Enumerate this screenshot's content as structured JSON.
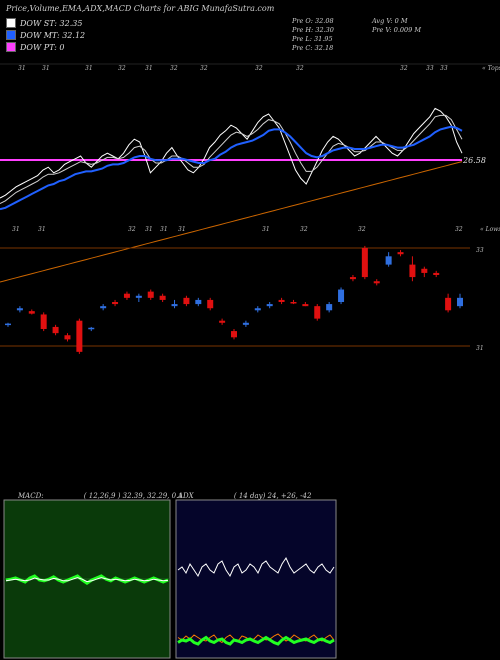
{
  "header": {
    "title": "Price,Volume,EMA,ADX,MACD Charts for ABIG MunafaSutra.com"
  },
  "legend": [
    {
      "label": "DOW ST: 32.35",
      "color": "#ffffff"
    },
    {
      "label": "DOW MT: 32.12",
      "color": "#2060ff"
    },
    {
      "label": "DOW PT: 0",
      "color": "#ff40ff"
    }
  ],
  "stats": {
    "col1": [
      "Pre  O: 32.08",
      "Pre  H: 32.30",
      "Pre  L: 31.95",
      "Pre  C: 32.18"
    ],
    "col2": [
      "Avg V: 0  M",
      "Pre  V: 0.009 M"
    ]
  },
  "macd_label": {
    "name": "MACD:",
    "params": "( 12,26,9 ) 32.39, 32.29, 0.1"
  },
  "adx_label": {
    "name": "ADX",
    "params": "( 14  day) 24, +26, -42"
  },
  "colors": {
    "up": "#2f6fe0",
    "down": "#e01010",
    "ema_short": "#ffffff",
    "ema_mid": "#2060ff",
    "ema_long": "#cc6600",
    "pivot": "#ff40ff"
  },
  "chart_data": [
    {
      "type": "line",
      "title": "Price and EMA",
      "pivot_label": "26.58",
      "top_date_labels": [
        "31",
        "31",
        "31",
        "32",
        "31",
        "32",
        "32",
        "32",
        "32",
        "32",
        "33",
        "33"
      ],
      "top_right_label": "« Tops",
      "bottom_date_labels": [
        "31",
        "31",
        "32",
        "31",
        "31",
        "31",
        "31",
        "32",
        "32",
        "32"
      ],
      "bottom_right_label": "« Lows",
      "series": [
        {
          "name": "price",
          "values": [
            0.3,
            0.32,
            0.35,
            0.38,
            0.4,
            0.42,
            0.44,
            0.46,
            0.5,
            0.52,
            0.48,
            0.5,
            0.54,
            0.56,
            0.58,
            0.6,
            0.55,
            0.52,
            0.56,
            0.6,
            0.62,
            0.6,
            0.58,
            0.62,
            0.68,
            0.72,
            0.7,
            0.6,
            0.48,
            0.52,
            0.56,
            0.62,
            0.66,
            0.6,
            0.55,
            0.5,
            0.48,
            0.52,
            0.58,
            0.66,
            0.7,
            0.75,
            0.78,
            0.82,
            0.8,
            0.76,
            0.72,
            0.78,
            0.84,
            0.88,
            0.9,
            0.85,
            0.8,
            0.7,
            0.6,
            0.5,
            0.44,
            0.4,
            0.48,
            0.56,
            0.64,
            0.7,
            0.74,
            0.72,
            0.68,
            0.64,
            0.6,
            0.62,
            0.66,
            0.7,
            0.74,
            0.7,
            0.66,
            0.62,
            0.6,
            0.64,
            0.7,
            0.76,
            0.8,
            0.84,
            0.88,
            0.94,
            0.92,
            0.88,
            0.82,
            0.7,
            0.62
          ]
        },
        {
          "name": "ema_short",
          "values": [
            0.26,
            0.28,
            0.31,
            0.34,
            0.36,
            0.38,
            0.4,
            0.42,
            0.45,
            0.47,
            0.47,
            0.48,
            0.5,
            0.52,
            0.54,
            0.56,
            0.55,
            0.54,
            0.55,
            0.57,
            0.59,
            0.59,
            0.58,
            0.59,
            0.62,
            0.66,
            0.67,
            0.64,
            0.58,
            0.55,
            0.55,
            0.57,
            0.6,
            0.6,
            0.58,
            0.55,
            0.52,
            0.52,
            0.54,
            0.59,
            0.63,
            0.67,
            0.71,
            0.75,
            0.77,
            0.76,
            0.74,
            0.76,
            0.79,
            0.83,
            0.86,
            0.85,
            0.83,
            0.77,
            0.7,
            0.62,
            0.55,
            0.49,
            0.49,
            0.52,
            0.57,
            0.62,
            0.67,
            0.69,
            0.68,
            0.66,
            0.63,
            0.63,
            0.64,
            0.67,
            0.7,
            0.7,
            0.68,
            0.66,
            0.64,
            0.64,
            0.67,
            0.71,
            0.75,
            0.79,
            0.83,
            0.88,
            0.89,
            0.89,
            0.86,
            0.79,
            0.72
          ]
        },
        {
          "name": "ema_mid",
          "values": [
            0.22,
            0.23,
            0.25,
            0.27,
            0.29,
            0.31,
            0.33,
            0.35,
            0.37,
            0.39,
            0.4,
            0.42,
            0.43,
            0.45,
            0.47,
            0.48,
            0.49,
            0.49,
            0.5,
            0.51,
            0.53,
            0.54,
            0.54,
            0.55,
            0.57,
            0.59,
            0.6,
            0.6,
            0.58,
            0.57,
            0.57,
            0.57,
            0.58,
            0.58,
            0.58,
            0.57,
            0.56,
            0.55,
            0.55,
            0.57,
            0.58,
            0.61,
            0.63,
            0.66,
            0.68,
            0.69,
            0.7,
            0.71,
            0.73,
            0.75,
            0.78,
            0.79,
            0.79,
            0.77,
            0.74,
            0.7,
            0.66,
            0.62,
            0.6,
            0.59,
            0.6,
            0.62,
            0.64,
            0.65,
            0.66,
            0.66,
            0.65,
            0.65,
            0.65,
            0.66,
            0.67,
            0.68,
            0.68,
            0.67,
            0.66,
            0.66,
            0.67,
            0.68,
            0.7,
            0.72,
            0.74,
            0.77,
            0.79,
            0.8,
            0.81,
            0.8,
            0.78
          ]
        },
        {
          "name": "ema_long",
          "values": [
            -0.3,
            -0.29,
            -0.28,
            -0.27,
            -0.26,
            -0.25,
            -0.24,
            -0.23,
            -0.22,
            -0.21,
            -0.2,
            -0.19,
            -0.18,
            -0.17,
            -0.16,
            -0.15,
            -0.14,
            -0.13,
            -0.12,
            -0.11,
            -0.1,
            -0.09,
            -0.08,
            -0.07,
            -0.06,
            -0.05,
            -0.04,
            -0.03,
            -0.02,
            -0.01,
            0.0,
            0.01,
            0.02,
            0.03,
            0.04,
            0.05,
            0.06,
            0.07,
            0.08,
            0.09,
            0.1,
            0.11,
            0.12,
            0.13,
            0.14,
            0.15,
            0.16,
            0.17,
            0.18,
            0.19,
            0.2,
            0.21,
            0.22,
            0.23,
            0.24,
            0.25,
            0.26,
            0.27,
            0.28,
            0.29,
            0.3,
            0.31,
            0.32,
            0.33,
            0.34,
            0.35,
            0.36,
            0.37,
            0.38,
            0.39,
            0.4,
            0.41,
            0.42,
            0.43,
            0.44,
            0.45,
            0.46,
            0.47,
            0.48,
            0.49,
            0.5,
            0.51,
            0.52,
            0.53,
            0.54,
            0.55,
            0.56
          ]
        }
      ],
      "pivot_value": 0.56
    },
    {
      "type": "bar",
      "title": "Candles",
      "y_labels": [
        "33",
        "31"
      ],
      "candles": [
        {
          "o": 31.45,
          "c": 31.48,
          "h": 31.5,
          "l": 31.4
        },
        {
          "o": 31.8,
          "c": 31.85,
          "h": 31.9,
          "l": 31.75
        },
        {
          "o": 31.78,
          "c": 31.72,
          "h": 31.82,
          "l": 31.7
        },
        {
          "o": 31.7,
          "c": 31.35,
          "h": 31.75,
          "l": 31.3
        },
        {
          "o": 31.4,
          "c": 31.25,
          "h": 31.45,
          "l": 31.2
        },
        {
          "o": 31.2,
          "c": 31.1,
          "h": 31.25,
          "l": 31.05
        },
        {
          "o": 31.55,
          "c": 30.8,
          "h": 31.6,
          "l": 30.75
        },
        {
          "o": 31.35,
          "c": 31.38,
          "h": 31.4,
          "l": 31.3
        },
        {
          "o": 31.85,
          "c": 31.9,
          "h": 31.95,
          "l": 31.8
        },
        {
          "o": 32.0,
          "c": 31.95,
          "h": 32.05,
          "l": 31.9
        },
        {
          "o": 32.2,
          "c": 32.1,
          "h": 32.25,
          "l": 32.05
        },
        {
          "o": 32.1,
          "c": 32.15,
          "h": 32.2,
          "l": 32.0
        },
        {
          "o": 32.25,
          "c": 32.1,
          "h": 32.3,
          "l": 32.05
        },
        {
          "o": 32.15,
          "c": 32.05,
          "h": 32.2,
          "l": 32.0
        },
        {
          "o": 31.9,
          "c": 31.95,
          "h": 32.05,
          "l": 31.85
        },
        {
          "o": 32.1,
          "c": 31.95,
          "h": 32.15,
          "l": 31.9
        },
        {
          "o": 31.95,
          "c": 32.05,
          "h": 32.1,
          "l": 31.9
        },
        {
          "o": 32.05,
          "c": 31.85,
          "h": 32.1,
          "l": 31.8
        },
        {
          "o": 31.55,
          "c": 31.5,
          "h": 31.6,
          "l": 31.45
        },
        {
          "o": 31.3,
          "c": 31.15,
          "h": 31.35,
          "l": 31.1
        },
        {
          "o": 31.45,
          "c": 31.5,
          "h": 31.55,
          "l": 31.4
        },
        {
          "o": 31.8,
          "c": 31.85,
          "h": 31.9,
          "l": 31.75
        },
        {
          "o": 31.9,
          "c": 31.95,
          "h": 32.0,
          "l": 31.85
        },
        {
          "o": 32.05,
          "c": 32.0,
          "h": 32.1,
          "l": 31.95
        },
        {
          "o": 32.0,
          "c": 31.98,
          "h": 32.05,
          "l": 31.95
        },
        {
          "o": 31.95,
          "c": 31.9,
          "h": 32.0,
          "l": 31.9
        },
        {
          "o": 31.9,
          "c": 31.6,
          "h": 31.95,
          "l": 31.55
        },
        {
          "o": 31.8,
          "c": 31.95,
          "h": 32.0,
          "l": 31.75
        },
        {
          "o": 32.0,
          "c": 32.3,
          "h": 32.35,
          "l": 31.95
        },
        {
          "o": 32.6,
          "c": 32.55,
          "h": 32.65,
          "l": 32.5
        },
        {
          "o": 33.3,
          "c": 32.6,
          "h": 33.35,
          "l": 32.55
        },
        {
          "o": 32.5,
          "c": 32.45,
          "h": 32.55,
          "l": 32.4
        },
        {
          "o": 32.9,
          "c": 33.1,
          "h": 33.2,
          "l": 32.85
        },
        {
          "o": 33.2,
          "c": 33.15,
          "h": 33.25,
          "l": 33.1
        },
        {
          "o": 32.9,
          "c": 32.6,
          "h": 33.1,
          "l": 32.5
        },
        {
          "o": 32.8,
          "c": 32.7,
          "h": 32.85,
          "l": 32.6
        },
        {
          "o": 32.7,
          "c": 32.65,
          "h": 32.75,
          "l": 32.6
        },
        {
          "o": 32.1,
          "c": 31.8,
          "h": 32.2,
          "l": 31.75
        },
        {
          "o": 31.9,
          "c": 32.1,
          "h": 32.2,
          "l": 31.85
        }
      ]
    },
    {
      "type": "line",
      "title": "MACD",
      "series": [
        {
          "name": "macd",
          "values": [
            0.5,
            0.52,
            0.55,
            0.5,
            0.45,
            0.55,
            0.6,
            0.5,
            0.48,
            0.52,
            0.58,
            0.5,
            0.45,
            0.5,
            0.55,
            0.6,
            0.5,
            0.42,
            0.5,
            0.55,
            0.6,
            0.52,
            0.48,
            0.55,
            0.5,
            0.45,
            0.5,
            0.55,
            0.5,
            0.45,
            0.5,
            0.55,
            0.5,
            0.45,
            0.5
          ]
        },
        {
          "name": "signal",
          "values": [
            0.48,
            0.5,
            0.52,
            0.5,
            0.48,
            0.5,
            0.55,
            0.52,
            0.5,
            0.5,
            0.54,
            0.52,
            0.48,
            0.48,
            0.52,
            0.56,
            0.52,
            0.46,
            0.48,
            0.52,
            0.56,
            0.53,
            0.5,
            0.52,
            0.5,
            0.48,
            0.49,
            0.52,
            0.5,
            0.48,
            0.49,
            0.52,
            0.5,
            0.48,
            0.49
          ]
        }
      ]
    },
    {
      "type": "line",
      "title": "ADX",
      "series": [
        {
          "name": "adx",
          "values": [
            0.5,
            0.55,
            0.45,
            0.6,
            0.5,
            0.4,
            0.55,
            0.6,
            0.5,
            0.45,
            0.6,
            0.65,
            0.5,
            0.4,
            0.55,
            0.6,
            0.45,
            0.5,
            0.6,
            0.55,
            0.45,
            0.6,
            0.65,
            0.55,
            0.5,
            0.45,
            0.6,
            0.7,
            0.55,
            0.45,
            0.5,
            0.55,
            0.6,
            0.5,
            0.45,
            0.55,
            0.6,
            0.5,
            0.45,
            0.55
          ]
        },
        {
          "name": "plus_di",
          "values": [
            0.15,
            0.2,
            0.18,
            0.22,
            0.15,
            0.12,
            0.2,
            0.25,
            0.18,
            0.15,
            0.2,
            0.22,
            0.15,
            0.12,
            0.2,
            0.18,
            0.15,
            0.2,
            0.22,
            0.18,
            0.15,
            0.2,
            0.25,
            0.2,
            0.15,
            0.12,
            0.2,
            0.25,
            0.2,
            0.15,
            0.18,
            0.2,
            0.22,
            0.18,
            0.15,
            0.2,
            0.22,
            0.18,
            0.15,
            0.2
          ]
        },
        {
          "name": "minus_di",
          "values": [
            0.25,
            0.2,
            0.28,
            0.22,
            0.3,
            0.25,
            0.2,
            0.18,
            0.25,
            0.3,
            0.2,
            0.15,
            0.25,
            0.3,
            0.22,
            0.18,
            0.28,
            0.25,
            0.2,
            0.22,
            0.3,
            0.25,
            0.2,
            0.22,
            0.28,
            0.32,
            0.25,
            0.18,
            0.22,
            0.3,
            0.25,
            0.2,
            0.18,
            0.25,
            0.3,
            0.22,
            0.18,
            0.25,
            0.3,
            0.2
          ]
        }
      ]
    }
  ]
}
